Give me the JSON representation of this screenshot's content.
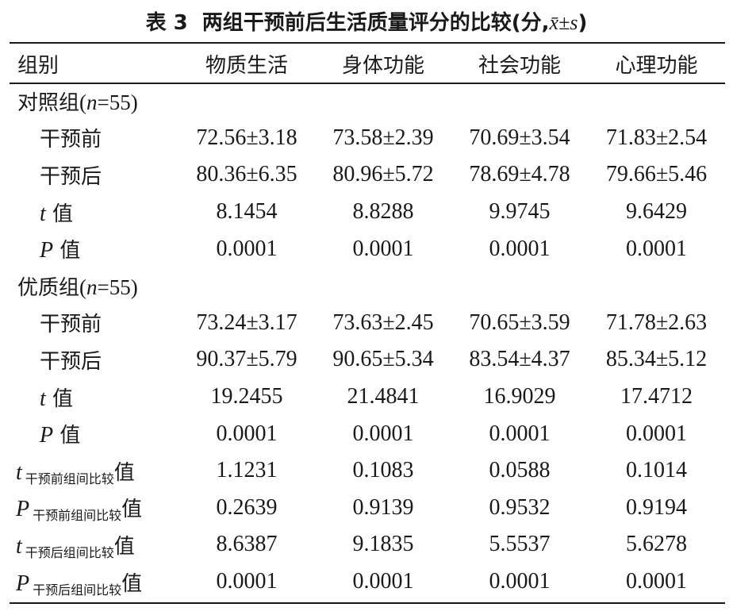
{
  "title": {
    "table_number": "表 3",
    "caption": "两组干预前后生活质量评分的比较(分,",
    "stat": "x̄±s",
    "close": ")"
  },
  "header": {
    "group": "组别",
    "columns": [
      "物质生活",
      "身体功能",
      "社会功能",
      "心理功能"
    ]
  },
  "groups": [
    {
      "name": "对照组",
      "n_label": "(n=55)",
      "n_var": "n",
      "n_value": "=55)",
      "rows": [
        {
          "label": "干预前",
          "values": [
            "72.56±3.18",
            "73.58±2.39",
            "70.69±3.54",
            "71.83±2.54"
          ]
        },
        {
          "label": "干预后",
          "values": [
            "80.36±6.35",
            "80.96±5.72",
            "78.69±4.78",
            "79.66±5.46"
          ]
        },
        {
          "label_var": "t",
          "label_suffix": "值",
          "values": [
            "8.1454",
            "8.8288",
            "9.9745",
            "9.6429"
          ]
        },
        {
          "label_var": "P",
          "label_suffix": "值",
          "values": [
            "0.0001",
            "0.0001",
            "0.0001",
            "0.0001"
          ]
        }
      ]
    },
    {
      "name": "优质组",
      "n_var": "n",
      "n_value": "=55)",
      "rows": [
        {
          "label": "干预前",
          "values": [
            "73.24±3.17",
            "73.63±2.45",
            "70.65±3.59",
            "71.78±2.63"
          ]
        },
        {
          "label": "干预后",
          "values": [
            "90.37±5.79",
            "90.65±5.34",
            "83.54±4.37",
            "85.34±5.12"
          ]
        },
        {
          "label_var": "t",
          "label_suffix": "值",
          "values": [
            "19.2455",
            "21.4841",
            "16.9029",
            "17.4712"
          ]
        },
        {
          "label_var": "P",
          "label_suffix": "值",
          "values": [
            "0.0001",
            "0.0001",
            "0.0001",
            "0.0001"
          ]
        }
      ]
    }
  ],
  "comparisons": [
    {
      "var": "t",
      "subscript": "干预前组间比较",
      "suffix": "值",
      "values": [
        "1.1231",
        "0.1083",
        "0.0588",
        "0.1014"
      ]
    },
    {
      "var": "P",
      "subscript": "干预前组间比较",
      "suffix": "值",
      "values": [
        "0.2639",
        "0.9139",
        "0.9532",
        "0.9194"
      ]
    },
    {
      "var": "t",
      "subscript": "干预后组间比较",
      "suffix": "值",
      "values": [
        "8.6387",
        "9.1835",
        "5.5537",
        "5.6278"
      ]
    },
    {
      "var": "P",
      "subscript": "干预后组间比较",
      "suffix": "值",
      "values": [
        "0.0001",
        "0.0001",
        "0.0001",
        "0.0001"
      ]
    }
  ]
}
